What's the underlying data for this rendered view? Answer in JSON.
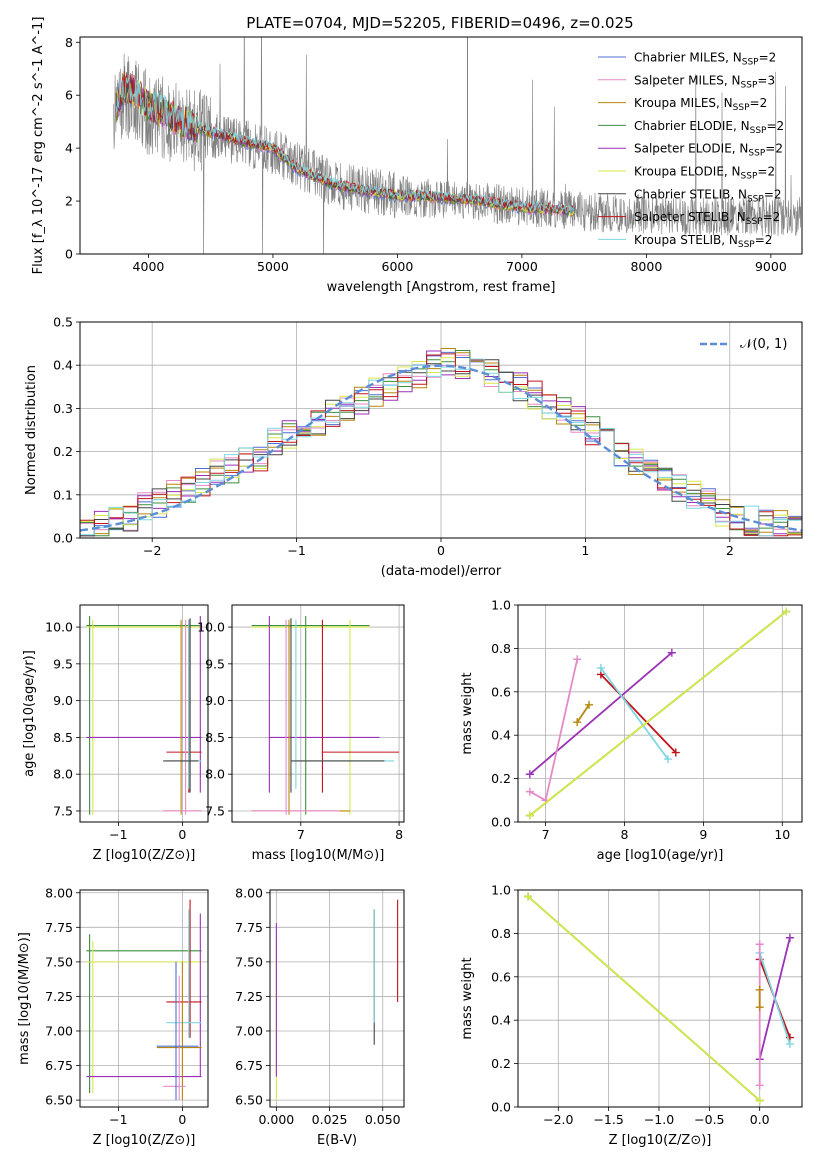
{
  "figure": {
    "title": "PLATE=0704, MJD=52205, FIBERID=0496, z=0.025"
  },
  "colors": {
    "Chabrier MILES": "#4f6fcf",
    "Salpeter MILES": "#e58ac8",
    "Kroupa MILES": "#b8860b",
    "Chabrier ELODIE": "#3b8f3b",
    "Salpeter ELODIE": "#9b30b8",
    "Kroupa ELODIE": "#d8e84a",
    "Chabrier STELIB": "#444444",
    "Salpeter STELIB": "#c0141c",
    "Kroupa STELIB": "#7fd6e0",
    "data": "#808080",
    "gaussian": "#5b8ed6"
  },
  "chart_data": [
    {
      "id": "spectrum",
      "type": "line",
      "title": "PLATE=0704, MJD=52205, FIBERID=0496, z=0.025",
      "xlabel": "wavelength [Angstrom, rest frame]",
      "ylabel": "Flux [f_λ 10^-17 erg cm^-2 s^-1 A^-1]",
      "xlim": [
        3450,
        9250
      ],
      "ylim": [
        0,
        8.2
      ],
      "xticks": [
        4000,
        5000,
        6000,
        7000,
        8000,
        9000
      ],
      "yticks": [
        0,
        2,
        4,
        6,
        8
      ],
      "legend_position": "top-right",
      "legend": [
        {
          "name": "Chabrier MILES",
          "sub": "N_SSP=2"
        },
        {
          "name": "Salpeter MILES",
          "sub": "N_SSP=3"
        },
        {
          "name": "Kroupa MILES",
          "sub": "N_SSP=2"
        },
        {
          "name": "Chabrier ELODIE",
          "sub": "N_SSP=2"
        },
        {
          "name": "Salpeter ELODIE",
          "sub": "N_SSP=2"
        },
        {
          "name": "Kroupa ELODIE",
          "sub": "N_SSP=2"
        },
        {
          "name": "Chabrier STELIB",
          "sub": "N_SSP=2"
        },
        {
          "name": "Salpeter STELIB",
          "sub": "N_SSP=2"
        },
        {
          "name": "Kroupa STELIB",
          "sub": "N_SSP=2"
        }
      ],
      "continuum_model": {
        "x": [
          3750,
          3800,
          3900,
          4000,
          4100,
          4200,
          4500,
          4800,
          5000,
          5200,
          5500,
          5800,
          6000,
          6300,
          6600,
          6800,
          7000,
          7200,
          7400
        ],
        "y": [
          5.6,
          6.3,
          6.1,
          5.6,
          5.4,
          5.1,
          4.6,
          4.2,
          4.0,
          3.2,
          2.6,
          2.35,
          2.2,
          2.15,
          2.05,
          1.9,
          1.75,
          1.7,
          1.62
        ]
      },
      "data_continuum": {
        "x": [
          3720,
          3800,
          3900,
          4000,
          4200,
          4500,
          5000,
          5500,
          6000,
          6500,
          7000,
          7500,
          8000,
          8500,
          9000,
          9200
        ],
        "y": [
          5.2,
          6.0,
          5.8,
          5.3,
          5.0,
          4.5,
          3.9,
          2.6,
          2.2,
          2.05,
          1.8,
          1.6,
          1.5,
          1.45,
          1.4,
          1.4
        ]
      }
    },
    {
      "id": "residuals",
      "type": "histogram",
      "xlabel": "(data-model)/error",
      "ylabel": "Normed distribution",
      "xlim": [
        -2.5,
        2.5
      ],
      "ylim": [
        0,
        0.5
      ],
      "xticks": [
        -2,
        -1,
        0,
        1,
        2
      ],
      "yticks": [
        0.0,
        0.1,
        0.2,
        0.3,
        0.4,
        0.5
      ],
      "legend_position": "top-right",
      "legend": [
        {
          "name": "𝒩(0, 1)"
        }
      ],
      "bin_width": 0.1,
      "bin_start": -2.5,
      "profile": [
        0.02,
        0.03,
        0.04,
        0.05,
        0.07,
        0.08,
        0.1,
        0.11,
        0.13,
        0.15,
        0.16,
        0.18,
        0.19,
        0.22,
        0.24,
        0.26,
        0.27,
        0.29,
        0.3,
        0.32,
        0.34,
        0.35,
        0.37,
        0.38,
        0.4,
        0.41,
        0.4,
        0.39,
        0.38,
        0.37,
        0.35,
        0.33,
        0.31,
        0.29,
        0.27,
        0.25,
        0.22,
        0.2,
        0.18,
        0.16,
        0.14,
        0.12,
        0.1,
        0.08,
        0.06,
        0.05,
        0.04,
        0.03,
        0.03,
        0.02
      ]
    },
    {
      "id": "age-vs-Z",
      "type": "errorbar",
      "xlabel": "Z [log10(Z/Z⊙)]",
      "ylabel": "age [log10(age/yr)]",
      "xlim": [
        -1.6,
        0.4
      ],
      "ylim": [
        7.35,
        10.3
      ],
      "xticks": [
        -1,
        0
      ],
      "yticks": [
        7.5,
        8.0,
        8.5,
        9.0,
        9.5,
        10.0
      ]
    },
    {
      "id": "age-vs-mass",
      "type": "errorbar",
      "xlabel": "mass [log10(M/M⊙)]",
      "ylabel": "",
      "xlim": [
        6.3,
        8.05
      ],
      "ylim": [
        7.35,
        10.3
      ],
      "xticks": [
        7,
        8
      ],
      "yticks": [
        7.5,
        8.0,
        8.5,
        9.0,
        9.5,
        10.0
      ]
    },
    {
      "id": "weight-vs-age",
      "type": "line",
      "xlabel": "age [log10(age/yr)]",
      "ylabel": "mass weight",
      "xlim": [
        6.65,
        10.25
      ],
      "ylim": [
        0,
        1
      ],
      "xticks": [
        7,
        8,
        9,
        10
      ],
      "yticks": [
        0.0,
        0.2,
        0.4,
        0.6,
        0.8,
        1.0
      ],
      "series": [
        {
          "key": "Salpeter ELODIE",
          "x": [
            6.8,
            8.6
          ],
          "y": [
            0.22,
            0.78
          ]
        },
        {
          "key": "Salpeter MILES",
          "x": [
            6.8,
            7.0,
            7.4
          ],
          "y": [
            0.14,
            0.1,
            0.75
          ]
        },
        {
          "key": "Kroupa MILES",
          "x": [
            7.4,
            7.55
          ],
          "y": [
            0.46,
            0.54
          ]
        },
        {
          "key": "Salpeter STELIB",
          "x": [
            7.7,
            8.65
          ],
          "y": [
            0.68,
            0.32
          ]
        },
        {
          "key": "Kroupa STELIB",
          "x": [
            7.7,
            8.55
          ],
          "y": [
            0.71,
            0.29
          ]
        },
        {
          "key": "Chabrier ELODIE",
          "x": [
            6.8,
            10.05
          ],
          "y": [
            0.03,
            0.97
          ]
        },
        {
          "key": "Kroupa ELODIE",
          "x": [
            6.8,
            10.05
          ],
          "y": [
            0.03,
            0.97
          ]
        }
      ]
    },
    {
      "id": "mass-vs-Z",
      "type": "errorbar",
      "xlabel": "Z [log10(Z/Z⊙)]",
      "ylabel": "mass [log10(M/M⊙)]",
      "xlim": [
        -1.6,
        0.4
      ],
      "ylim": [
        6.45,
        8.02
      ],
      "xticks": [
        -1,
        0
      ],
      "yticks": [
        6.5,
        6.75,
        7.0,
        7.25,
        7.5,
        7.75,
        8.0
      ]
    },
    {
      "id": "mass-vs-ebv",
      "type": "errorbar",
      "xlabel": "E(B-V)",
      "ylabel": "",
      "xlim": [
        -0.003,
        0.06
      ],
      "ylim": [
        6.45,
        8.02
      ],
      "xticks": [
        0.0,
        0.025,
        0.05
      ],
      "yticks": [
        6.5,
        6.75,
        7.0,
        7.25,
        7.5,
        7.75,
        8.0
      ]
    },
    {
      "id": "weight-vs-Z",
      "type": "line",
      "xlabel": "Z [log10(Z/Z⊙)]",
      "ylabel": "mass weight",
      "xlim": [
        -2.4,
        0.42
      ],
      "ylim": [
        0,
        1
      ],
      "xticks": [
        -2.0,
        -1.5,
        -1.0,
        -0.5,
        0.0
      ],
      "yticks": [
        0.0,
        0.2,
        0.4,
        0.6,
        0.8,
        1.0
      ],
      "series": [
        {
          "key": "Chabrier ELODIE",
          "x": [
            -2.3,
            0.0
          ],
          "y": [
            0.97,
            0.03
          ]
        },
        {
          "key": "Kroupa ELODIE",
          "x": [
            -2.3,
            0.0
          ],
          "y": [
            0.97,
            0.03
          ]
        },
        {
          "key": "Salpeter ELODIE",
          "x": [
            0.0,
            0.3
          ],
          "y": [
            0.22,
            0.78
          ]
        },
        {
          "key": "Salpeter STELIB",
          "x": [
            0.0,
            0.3
          ],
          "y": [
            0.68,
            0.32
          ]
        },
        {
          "key": "Kroupa STELIB",
          "x": [
            0.0,
            0.3
          ],
          "y": [
            0.71,
            0.29
          ]
        },
        {
          "key": "Salpeter MILES",
          "x": [
            0.0,
            0.0
          ],
          "y": [
            0.1,
            0.75
          ]
        },
        {
          "key": "Kroupa MILES",
          "x": [
            0.0,
            0.0
          ],
          "y": [
            0.46,
            0.54
          ]
        }
      ]
    }
  ]
}
